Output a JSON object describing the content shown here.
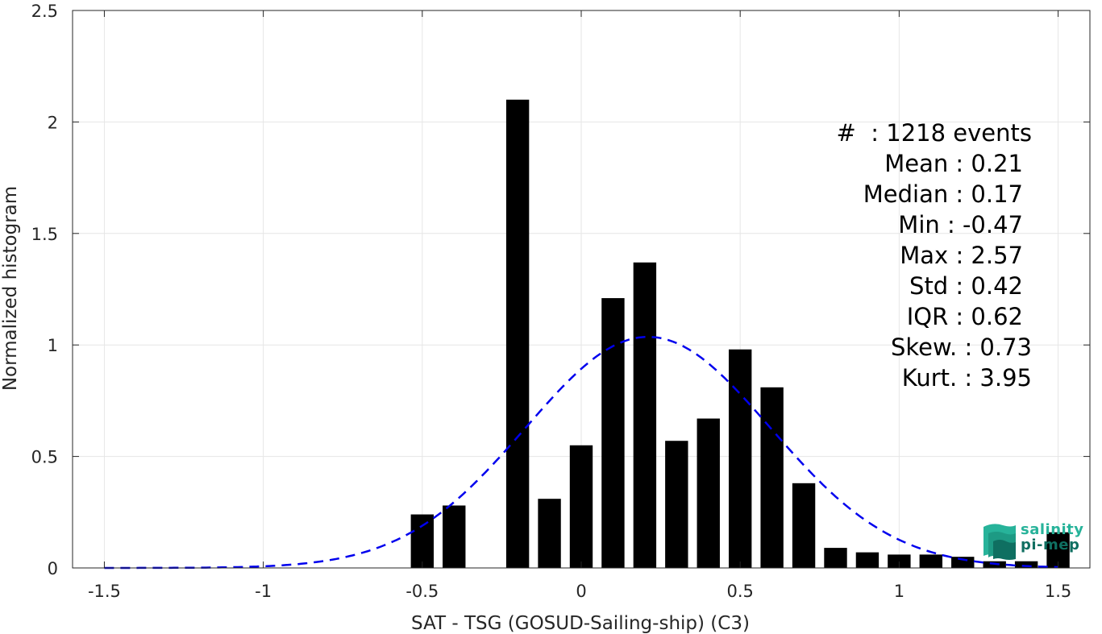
{
  "chart_data": {
    "type": "bar",
    "xlabel": "SAT - TSG (GOSUD-Sailing-ship) (C3)",
    "ylabel": "Normalized histogram",
    "xlim": [
      -1.6,
      1.6
    ],
    "ylim": [
      0,
      2.5
    ],
    "grid": true,
    "x_ticks": [
      {
        "value": -1.5,
        "label": "-1.5"
      },
      {
        "value": -1.0,
        "label": "-1"
      },
      {
        "value": -0.5,
        "label": "-0.5"
      },
      {
        "value": 0.0,
        "label": "0"
      },
      {
        "value": 0.5,
        "label": "0.5"
      },
      {
        "value": 1.0,
        "label": "1"
      },
      {
        "value": 1.5,
        "label": "1.5"
      }
    ],
    "y_ticks": [
      {
        "value": 0,
        "label": "0"
      },
      {
        "value": 0.5,
        "label": "0.5"
      },
      {
        "value": 1.0,
        "label": "1"
      },
      {
        "value": 1.5,
        "label": "1.5"
      },
      {
        "value": 2.0,
        "label": "2"
      },
      {
        "value": 2.5,
        "label": "2.5"
      }
    ],
    "bin_width": 0.1,
    "bars": [
      {
        "x": -0.5,
        "value": 0.24
      },
      {
        "x": -0.4,
        "value": 0.28
      },
      {
        "x": -0.2,
        "value": 2.1
      },
      {
        "x": -0.1,
        "value": 0.31
      },
      {
        "x": 0.0,
        "value": 0.55
      },
      {
        "x": 0.1,
        "value": 1.21
      },
      {
        "x": 0.2,
        "value": 1.37
      },
      {
        "x": 0.3,
        "value": 0.57
      },
      {
        "x": 0.4,
        "value": 0.67
      },
      {
        "x": 0.5,
        "value": 0.98
      },
      {
        "x": 0.6,
        "value": 0.81
      },
      {
        "x": 0.7,
        "value": 0.38
      },
      {
        "x": 0.8,
        "value": 0.09
      },
      {
        "x": 0.9,
        "value": 0.07
      },
      {
        "x": 1.0,
        "value": 0.06
      },
      {
        "x": 1.1,
        "value": 0.06
      },
      {
        "x": 1.2,
        "value": 0.05
      },
      {
        "x": 1.3,
        "value": 0.03
      },
      {
        "x": 1.4,
        "value": 0.03
      },
      {
        "x": 1.5,
        "value": 0.16
      }
    ],
    "gaussian_fit": {
      "mean": 0.21,
      "std": 0.385,
      "x_range": [
        -1.5,
        1.5
      ],
      "style": "dashed",
      "color": "#0000ee"
    },
    "bar_color": "#000000"
  },
  "stats": {
    "count": "#  : 1218 events",
    "mean": "Mean : 0.21",
    "median": "Median : 0.17",
    "min": "Min : -0.47",
    "max": "Max : 2.57",
    "std": "Std : 0.42",
    "iqr": "IQR : 0.62",
    "skew": "Skew. : 0.73",
    "kurt": "Kurt. : 3.95"
  },
  "logo": {
    "line1": "salinity",
    "line2": "pi-mep",
    "colors": {
      "primary": "#27b39a",
      "dark": "#0f6f61"
    }
  }
}
